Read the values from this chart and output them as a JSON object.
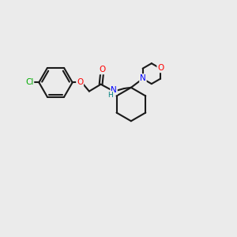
{
  "background_color": "#ebebeb",
  "bond_color": "#1a1a1a",
  "atom_colors": {
    "Cl": "#00aa00",
    "O": "#ff0000",
    "N": "#0000ff",
    "H": "#008080"
  },
  "figsize": [
    3.0,
    3.0
  ],
  "dpi": 100,
  "xlim": [
    0,
    10
  ],
  "ylim": [
    0,
    10
  ]
}
